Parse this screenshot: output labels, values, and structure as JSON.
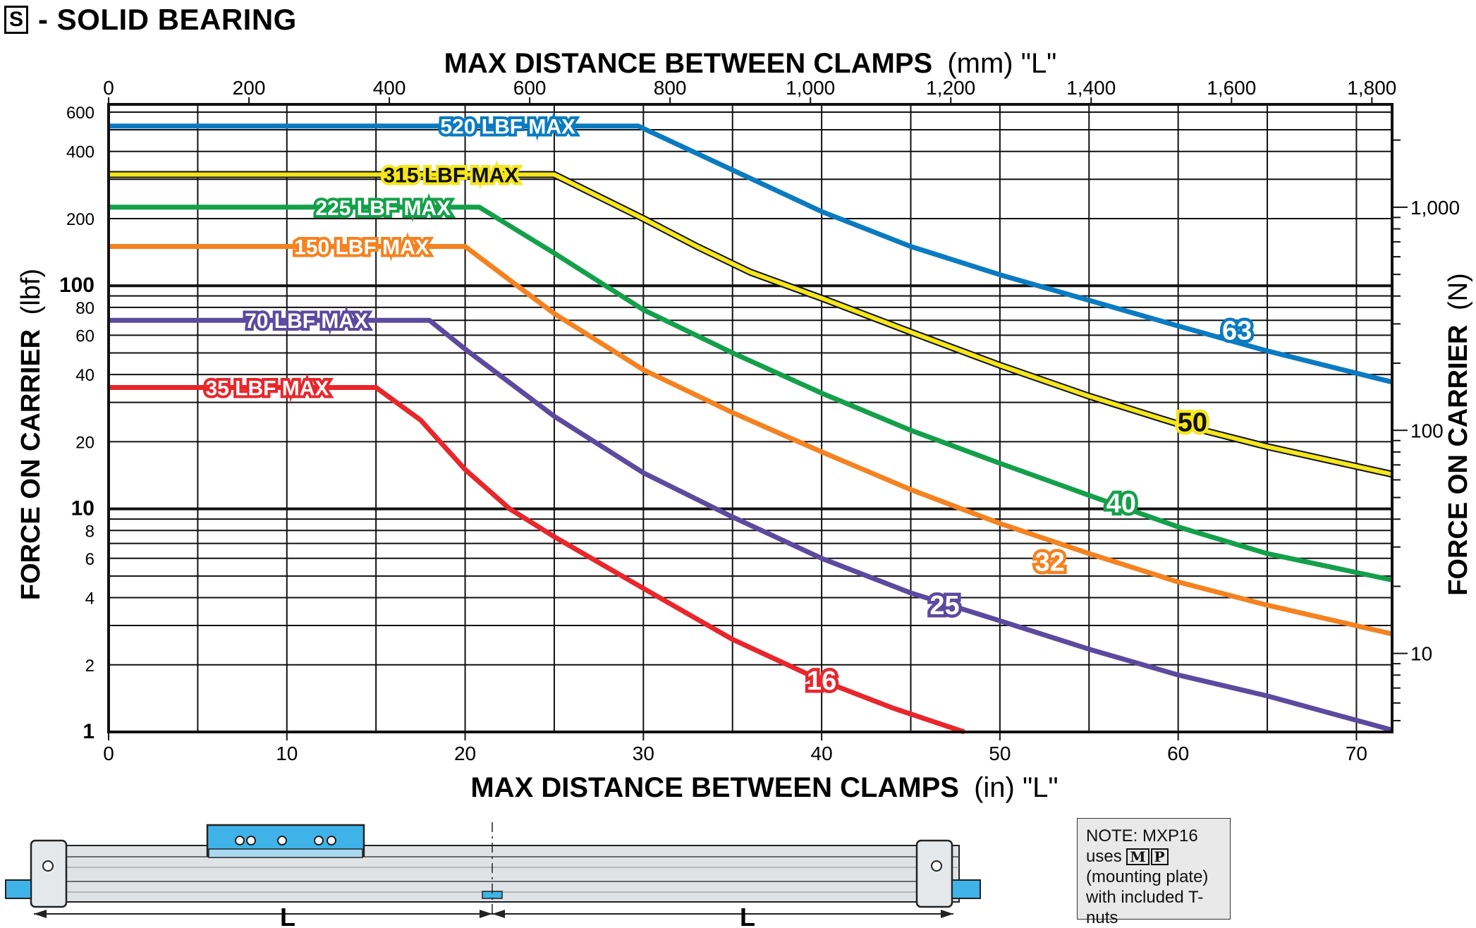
{
  "page": {
    "badge": "S",
    "title": "- SOLID BEARING"
  },
  "axes": {
    "top_title_bold": "MAX DISTANCE BETWEEN CLAMPS",
    "top_title_unit": "(mm) \"L\"",
    "bottom_title_bold": "MAX DISTANCE BETWEEN CLAMPS",
    "bottom_title_unit": "(in) \"L\"",
    "left_title_bold": "FORCE ON CARRIER",
    "left_title_unit": "(lbf)",
    "right_title_bold": "FORCE ON CARRIER",
    "right_title_unit": "(N)",
    "top_ticks": [
      "0",
      "200",
      "400",
      "600",
      "800",
      "1,000",
      "1,200",
      "1,400",
      "1,600",
      "1,800"
    ],
    "top_tick_values_mm": [
      0,
      200,
      400,
      600,
      800,
      1000,
      1200,
      1400,
      1600,
      1800
    ],
    "bottom_ticks": [
      "0",
      "10",
      "20",
      "30",
      "40",
      "50",
      "60",
      "70"
    ],
    "bottom_tick_values_in": [
      0,
      10,
      20,
      30,
      40,
      50,
      60,
      70
    ],
    "left_ticks": [
      {
        "label": "600",
        "value": 600,
        "bold": false
      },
      {
        "label": "400",
        "value": 400,
        "bold": false
      },
      {
        "label": "200",
        "value": 200,
        "bold": false
      },
      {
        "label": "100",
        "value": 100,
        "bold": true
      },
      {
        "label": "80",
        "value": 80,
        "bold": false
      },
      {
        "label": "60",
        "value": 60,
        "bold": false
      },
      {
        "label": "40",
        "value": 40,
        "bold": false
      },
      {
        "label": "20",
        "value": 20,
        "bold": false
      },
      {
        "label": "10",
        "value": 10,
        "bold": true
      },
      {
        "label": "8",
        "value": 8,
        "bold": false
      },
      {
        "label": "6",
        "value": 6,
        "bold": false
      },
      {
        "label": "4",
        "value": 4,
        "bold": false
      },
      {
        "label": "2",
        "value": 2,
        "bold": false
      },
      {
        "label": "1",
        "value": 1,
        "bold": true
      }
    ],
    "right_ticks": [
      {
        "label": "1,000",
        "value": 1000
      },
      {
        "label": "100",
        "value": 100
      },
      {
        "label": "10",
        "value": 10
      }
    ]
  },
  "chart_data": {
    "type": "line",
    "x_unit": "in",
    "y_unit": "lbf",
    "y_scale": "log",
    "xlim": [
      0,
      72
    ],
    "ylim": [
      1,
      650
    ],
    "grid": true,
    "series": [
      {
        "name": "63",
        "color": "#0a7bc1",
        "max_label": "520 LBF MAX",
        "points": [
          [
            0,
            520
          ],
          [
            29.7,
            520
          ],
          [
            35,
            330
          ],
          [
            40,
            215
          ],
          [
            45,
            150
          ],
          [
            50,
            112
          ],
          [
            55,
            86
          ],
          [
            60,
            66
          ],
          [
            65,
            51
          ],
          [
            72,
            37
          ]
        ]
      },
      {
        "name": "50",
        "color": "#f5e61b",
        "max_label": "315 LBF MAX",
        "points": [
          [
            0,
            315
          ],
          [
            25,
            315
          ],
          [
            30,
            200
          ],
          [
            33,
            150
          ],
          [
            36,
            115
          ],
          [
            40,
            88
          ],
          [
            45,
            62
          ],
          [
            50,
            44
          ],
          [
            55,
            32
          ],
          [
            60,
            24
          ],
          [
            65,
            19
          ],
          [
            72,
            14.3
          ]
        ]
      },
      {
        "name": "40",
        "color": "#14a04a",
        "max_label": "225 LBF MAX",
        "points": [
          [
            0,
            225
          ],
          [
            20.8,
            225
          ],
          [
            25,
            140
          ],
          [
            30,
            78
          ],
          [
            35,
            50
          ],
          [
            40,
            33
          ],
          [
            45,
            22.5
          ],
          [
            50,
            16
          ],
          [
            55,
            11.5
          ],
          [
            60,
            8.3
          ],
          [
            65,
            6.3
          ],
          [
            72,
            4.8
          ]
        ]
      },
      {
        "name": "32",
        "color": "#f58220",
        "max_label": "150 LBF MAX",
        "points": [
          [
            0,
            150
          ],
          [
            20,
            150
          ],
          [
            25,
            75
          ],
          [
            30,
            42
          ],
          [
            35,
            27
          ],
          [
            40,
            18
          ],
          [
            45,
            12.2
          ],
          [
            50,
            8.6
          ],
          [
            55,
            6.3
          ],
          [
            60,
            4.7
          ],
          [
            65,
            3.7
          ],
          [
            72,
            2.75
          ]
        ]
      },
      {
        "name": "25",
        "color": "#5b4a9e",
        "max_label": "70 LBF MAX",
        "points": [
          [
            0,
            70
          ],
          [
            18,
            70
          ],
          [
            20,
            52
          ],
          [
            25,
            26
          ],
          [
            30,
            14.5
          ],
          [
            35,
            9.2
          ],
          [
            40,
            6.0
          ],
          [
            45,
            4.2
          ],
          [
            50,
            3.15
          ],
          [
            55,
            2.35
          ],
          [
            60,
            1.8
          ],
          [
            65,
            1.45
          ],
          [
            72,
            1.02
          ]
        ]
      },
      {
        "name": "16",
        "color": "#e8262b",
        "max_label": "35 LBF MAX",
        "points": [
          [
            0,
            35
          ],
          [
            15,
            35
          ],
          [
            17.5,
            25
          ],
          [
            20,
            15
          ],
          [
            22.5,
            10
          ],
          [
            25,
            7.5
          ],
          [
            30,
            4.4
          ],
          [
            35,
            2.6
          ],
          [
            40,
            1.7
          ],
          [
            44,
            1.28
          ],
          [
            48,
            1.0
          ]
        ]
      }
    ]
  },
  "diagram": {
    "dimension_label_left": "L",
    "dimension_label_right": "L"
  },
  "note": {
    "line1": "NOTE: MXP16",
    "line2_prefix": "uses",
    "badge_m": "M",
    "badge_p": "P",
    "line3": "(mounting plate)",
    "line4": "with included T-nuts"
  }
}
